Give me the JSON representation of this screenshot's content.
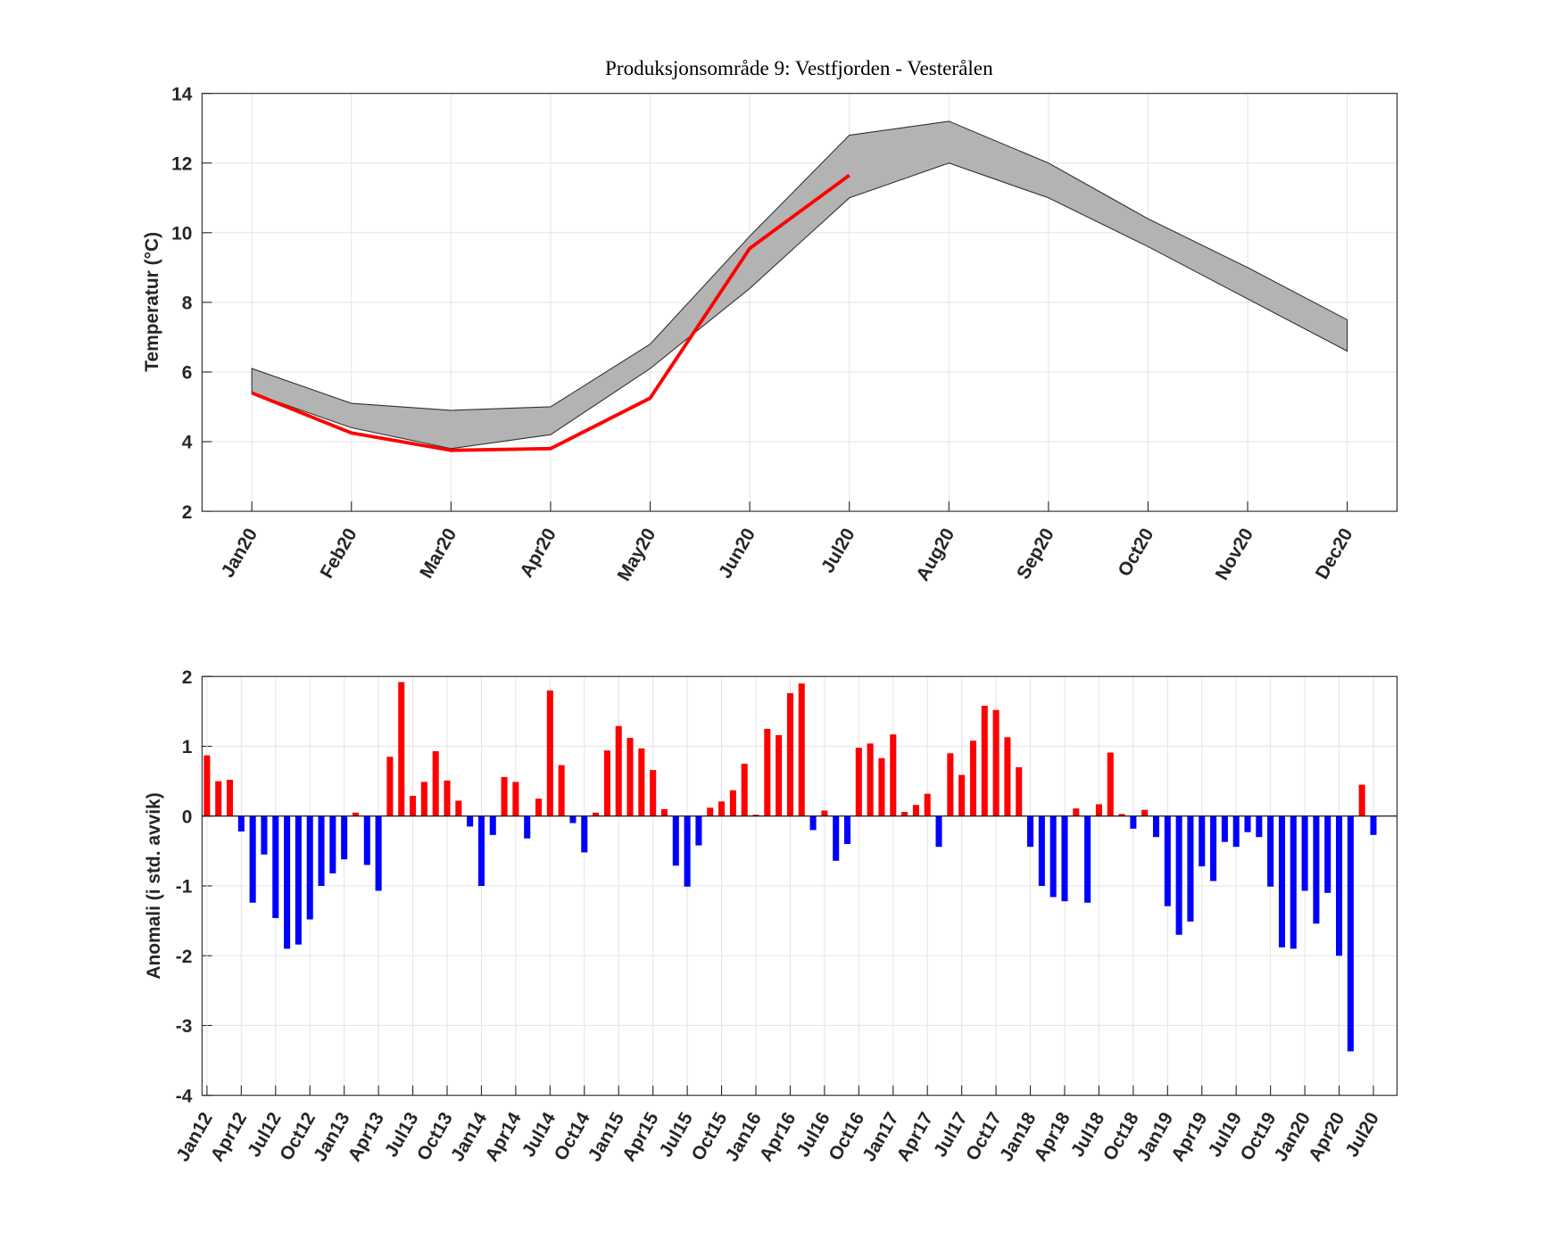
{
  "chart_data": [
    {
      "type": "line",
      "title": "Produksjonsområde 9: Vestfjorden - Vesterålen",
      "y_label": "Temperatur (°C)",
      "categories": [
        "Jan20",
        "Feb20",
        "Mar20",
        "Apr20",
        "May20",
        "Jun20",
        "Jul20",
        "Aug20",
        "Sep20",
        "Oct20",
        "Nov20",
        "Dec20"
      ],
      "series": [
        {
          "color": "#b3b3b3",
          "edge_color": "#333333",
          "upper": [
            6.1,
            5.1,
            4.9,
            5.0,
            6.8,
            9.9,
            12.8,
            13.2,
            12.0,
            10.4,
            9.0,
            7.5
          ],
          "lower": [
            5.4,
            4.4,
            3.8,
            4.2,
            6.1,
            8.4,
            11.0,
            12.0,
            11.0,
            9.6,
            8.1,
            6.6
          ]
        },
        {
          "color": "#ff0000",
          "values": [
            5.4,
            4.25,
            3.75,
            3.8,
            5.25,
            9.55,
            11.65,
            null,
            null,
            null,
            null,
            null
          ]
        }
      ],
      "ylim": [
        2,
        14
      ],
      "yticks": [
        2,
        4,
        6,
        8,
        10,
        12,
        14
      ],
      "grid": true
    },
    {
      "type": "bar",
      "y_label": "Anomali (i std. avvik)",
      "categories": [
        "Jan12",
        null,
        null,
        "Apr12",
        null,
        null,
        "Jul12",
        null,
        null,
        "Oct12",
        null,
        null,
        "Jan13",
        null,
        null,
        "Apr13",
        null,
        null,
        "Jul13",
        null,
        null,
        "Oct13",
        null,
        null,
        "Jan14",
        null,
        null,
        "Apr14",
        null,
        null,
        "Jul14",
        null,
        null,
        "Oct14",
        null,
        null,
        "Jan15",
        null,
        null,
        "Apr15",
        null,
        null,
        "Jul15",
        null,
        null,
        "Oct15",
        null,
        null,
        "Jan16",
        null,
        null,
        "Apr16",
        null,
        null,
        "Jul16",
        null,
        null,
        "Oct16",
        null,
        null,
        "Jan17",
        null,
        null,
        "Apr17",
        null,
        null,
        "Jul17",
        null,
        null,
        "Oct17",
        null,
        null,
        "Jan18",
        null,
        null,
        "Apr18",
        null,
        null,
        "Jul18",
        null,
        null,
        "Oct18",
        null,
        null,
        "Jan19",
        null,
        null,
        "Apr19",
        null,
        null,
        "Jul19",
        null,
        null,
        "Oct19",
        null,
        null,
        "Jan20",
        null,
        null,
        "Apr20",
        null,
        null,
        "Jul20"
      ],
      "values": [
        0.87,
        0.5,
        0.52,
        -0.22,
        -1.24,
        -0.55,
        -1.46,
        -1.9,
        -1.84,
        -1.48,
        -1.0,
        -0.82,
        -0.62,
        0.05,
        -0.7,
        -1.07,
        0.85,
        1.92,
        0.29,
        0.49,
        0.93,
        0.51,
        0.22,
        -0.15,
        -1.0,
        -0.27,
        0.56,
        0.49,
        -0.32,
        0.25,
        1.8,
        0.73,
        -0.1,
        -0.52,
        0.05,
        0.94,
        1.29,
        1.12,
        0.97,
        0.66,
        0.1,
        -0.71,
        -1.01,
        -0.42,
        0.12,
        0.21,
        0.37,
        0.75,
        0.02,
        1.25,
        1.16,
        1.76,
        1.9,
        -0.2,
        0.08,
        -0.64,
        -0.4,
        0.98,
        1.04,
        0.83,
        1.17,
        0.06,
        0.16,
        0.32,
        -0.44,
        0.9,
        0.59,
        1.08,
        1.58,
        1.52,
        1.13,
        0.7,
        -0.44,
        -1.0,
        -1.16,
        -1.22,
        0.11,
        -1.24,
        0.17,
        0.91,
        0.03,
        -0.18,
        0.09,
        -0.3,
        -1.29,
        -1.7,
        -1.51,
        -0.72,
        -0.93,
        -0.37,
        -0.44,
        -0.23,
        -0.3,
        -1.01,
        -1.88,
        -1.9,
        -1.07,
        -1.54,
        -1.1,
        -2.0,
        -3.37,
        0.45,
        -0.27
      ],
      "positive_color": "#ff0000",
      "negative_color": "#0000ff",
      "ylim": [
        -4,
        2
      ],
      "yticks": [
        -4,
        -3,
        -2,
        -1,
        0,
        1,
        2
      ],
      "grid": true
    }
  ]
}
